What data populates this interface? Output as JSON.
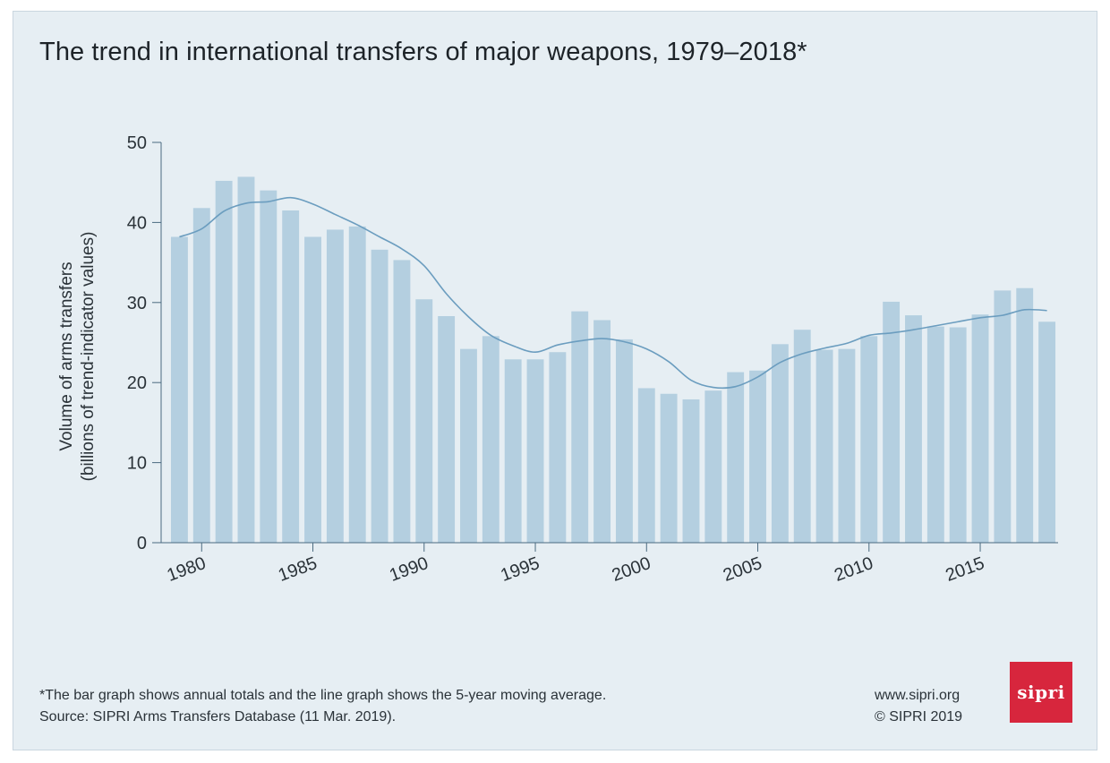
{
  "header": {
    "title": "The trend in international transfers of major weapons, 1979–2018*"
  },
  "footer": {
    "note": "*The bar graph shows annual totals and the line graph shows the 5-year moving average.",
    "source": "Source: SIPRI Arms Transfers Database (11 Mar. 2019).",
    "website": "www.sipri.org",
    "copyright": "© SIPRI 2019",
    "logo_text": "sipri"
  },
  "colors": {
    "background": "#e6eef3",
    "bar": "#b4cfe0",
    "line": "#6b9dbf",
    "axis": "#4a6a80",
    "logo": "#d7263d"
  },
  "chart_data": {
    "type": "bar",
    "title": "The trend in international transfers of major weapons, 1979–2018*",
    "ylabel": "Volume of arms transfers",
    "ylabel_sub": "(billions of trend-indicator values)",
    "xlabel": "",
    "ylim": [
      0,
      50
    ],
    "yticks": [
      0,
      10,
      20,
      30,
      40,
      50
    ],
    "xticks": [
      1980,
      1985,
      1990,
      1995,
      2000,
      2005,
      2010,
      2015
    ],
    "grid": false,
    "x": [
      1979,
      1980,
      1981,
      1982,
      1983,
      1984,
      1985,
      1986,
      1987,
      1988,
      1989,
      1990,
      1991,
      1992,
      1993,
      1994,
      1995,
      1996,
      1997,
      1998,
      1999,
      2000,
      2001,
      2002,
      2003,
      2004,
      2005,
      2006,
      2007,
      2008,
      2009,
      2010,
      2011,
      2012,
      2013,
      2014,
      2015,
      2016,
      2017,
      2018
    ],
    "series": [
      {
        "type": "bar",
        "values": [
          38.2,
          41.8,
          45.2,
          45.7,
          44.0,
          41.5,
          38.2,
          39.1,
          39.5,
          36.6,
          35.3,
          30.4,
          28.3,
          24.2,
          25.8,
          22.9,
          22.9,
          23.8,
          28.9,
          27.8,
          25.4,
          19.3,
          18.6,
          17.9,
          19.0,
          21.3,
          21.5,
          24.8,
          26.6,
          24.1,
          24.2,
          25.8,
          30.1,
          28.4,
          27.0,
          26.9,
          28.5,
          31.5,
          31.8,
          27.6
        ]
      },
      {
        "type": "line",
        "values": [
          38.2,
          39.2,
          41.4,
          42.4,
          42.6,
          43.1,
          42.3,
          41.0,
          39.7,
          38.2,
          36.7,
          34.6,
          31.1,
          28.2,
          25.9,
          24.6,
          23.8,
          24.7,
          25.2,
          25.5,
          25.1,
          24.2,
          22.6,
          20.3,
          19.4,
          19.5,
          20.7,
          22.5,
          23.6,
          24.3,
          24.9,
          25.9,
          26.2,
          26.6,
          27.1,
          27.6,
          28.1,
          28.4,
          29.1,
          29.0
        ]
      }
    ]
  }
}
